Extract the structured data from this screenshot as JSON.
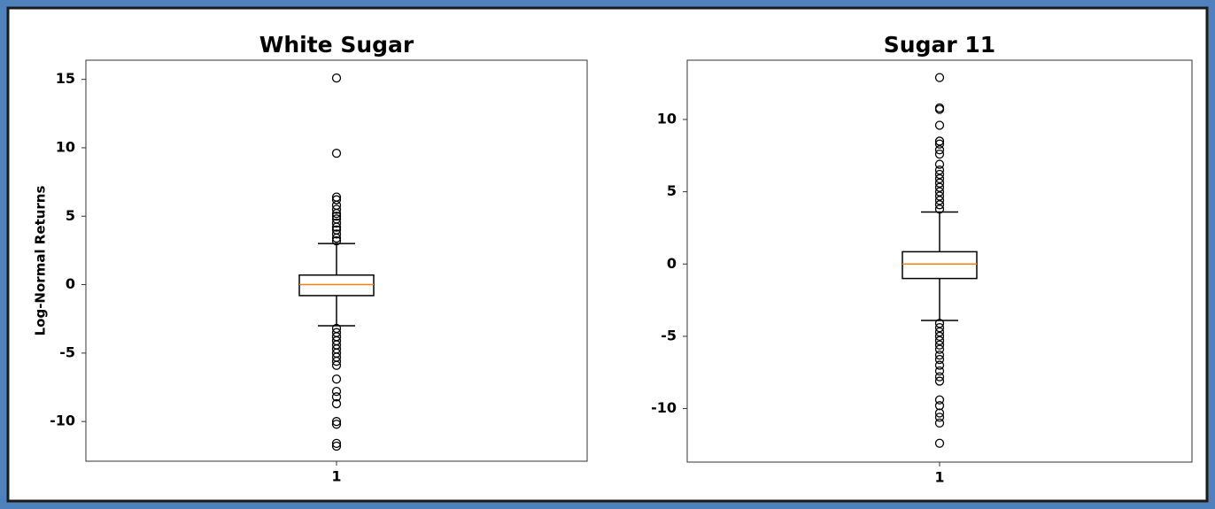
{
  "chart_data": [
    {
      "type": "box",
      "title": "White Sugar",
      "y_label": "Log-Normal Returns",
      "categories": [
        "1"
      ],
      "ylim": [
        -12.9,
        16.4
      ],
      "yticks": [
        -10,
        -5,
        0,
        5,
        10,
        15
      ],
      "box_color": "#000000",
      "median_color": "#ff7f0e",
      "whisker_low": -3.0,
      "q1": -0.8,
      "median": 0,
      "q3": 0.7,
      "whisker_high": 3.0,
      "outliers": [
        15.1,
        9.6,
        6.4,
        6.2,
        5.8,
        5.5,
        5.2,
        5.0,
        4.8,
        4.5,
        4.2,
        4.0,
        3.7,
        3.4,
        3.2,
        -3.2,
        -3.5,
        -3.8,
        -4.1,
        -4.4,
        -4.7,
        -5.0,
        -5.3,
        -5.6,
        -5.9,
        -6.9,
        -7.8,
        -8.2,
        -8.7,
        -10.0,
        -10.2,
        -11.6,
        -11.8
      ]
    },
    {
      "type": "box",
      "title": "Sugar 11",
      "categories": [
        "1"
      ],
      "ylim": [
        -13.7,
        14.1
      ],
      "yticks": [
        -10,
        -5,
        0,
        5,
        10
      ],
      "box_color": "#000000",
      "median_color": "#ff7f0e",
      "whisker_low": -3.9,
      "q1": -1.0,
      "median": 0,
      "q3": 0.85,
      "whisker_high": 3.6,
      "outliers": [
        12.9,
        10.8,
        10.7,
        9.6,
        8.5,
        8.3,
        7.9,
        7.6,
        6.9,
        6.5,
        6.2,
        5.9,
        5.6,
        5.3,
        5.0,
        4.7,
        4.4,
        4.1,
        3.8,
        -4.1,
        -4.4,
        -4.7,
        -5.0,
        -5.3,
        -5.6,
        -5.9,
        -6.3,
        -6.6,
        -7.0,
        -7.4,
        -7.8,
        -8.1,
        -9.4,
        -9.8,
        -10.3,
        -10.6,
        -11.0,
        -12.4
      ]
    }
  ]
}
